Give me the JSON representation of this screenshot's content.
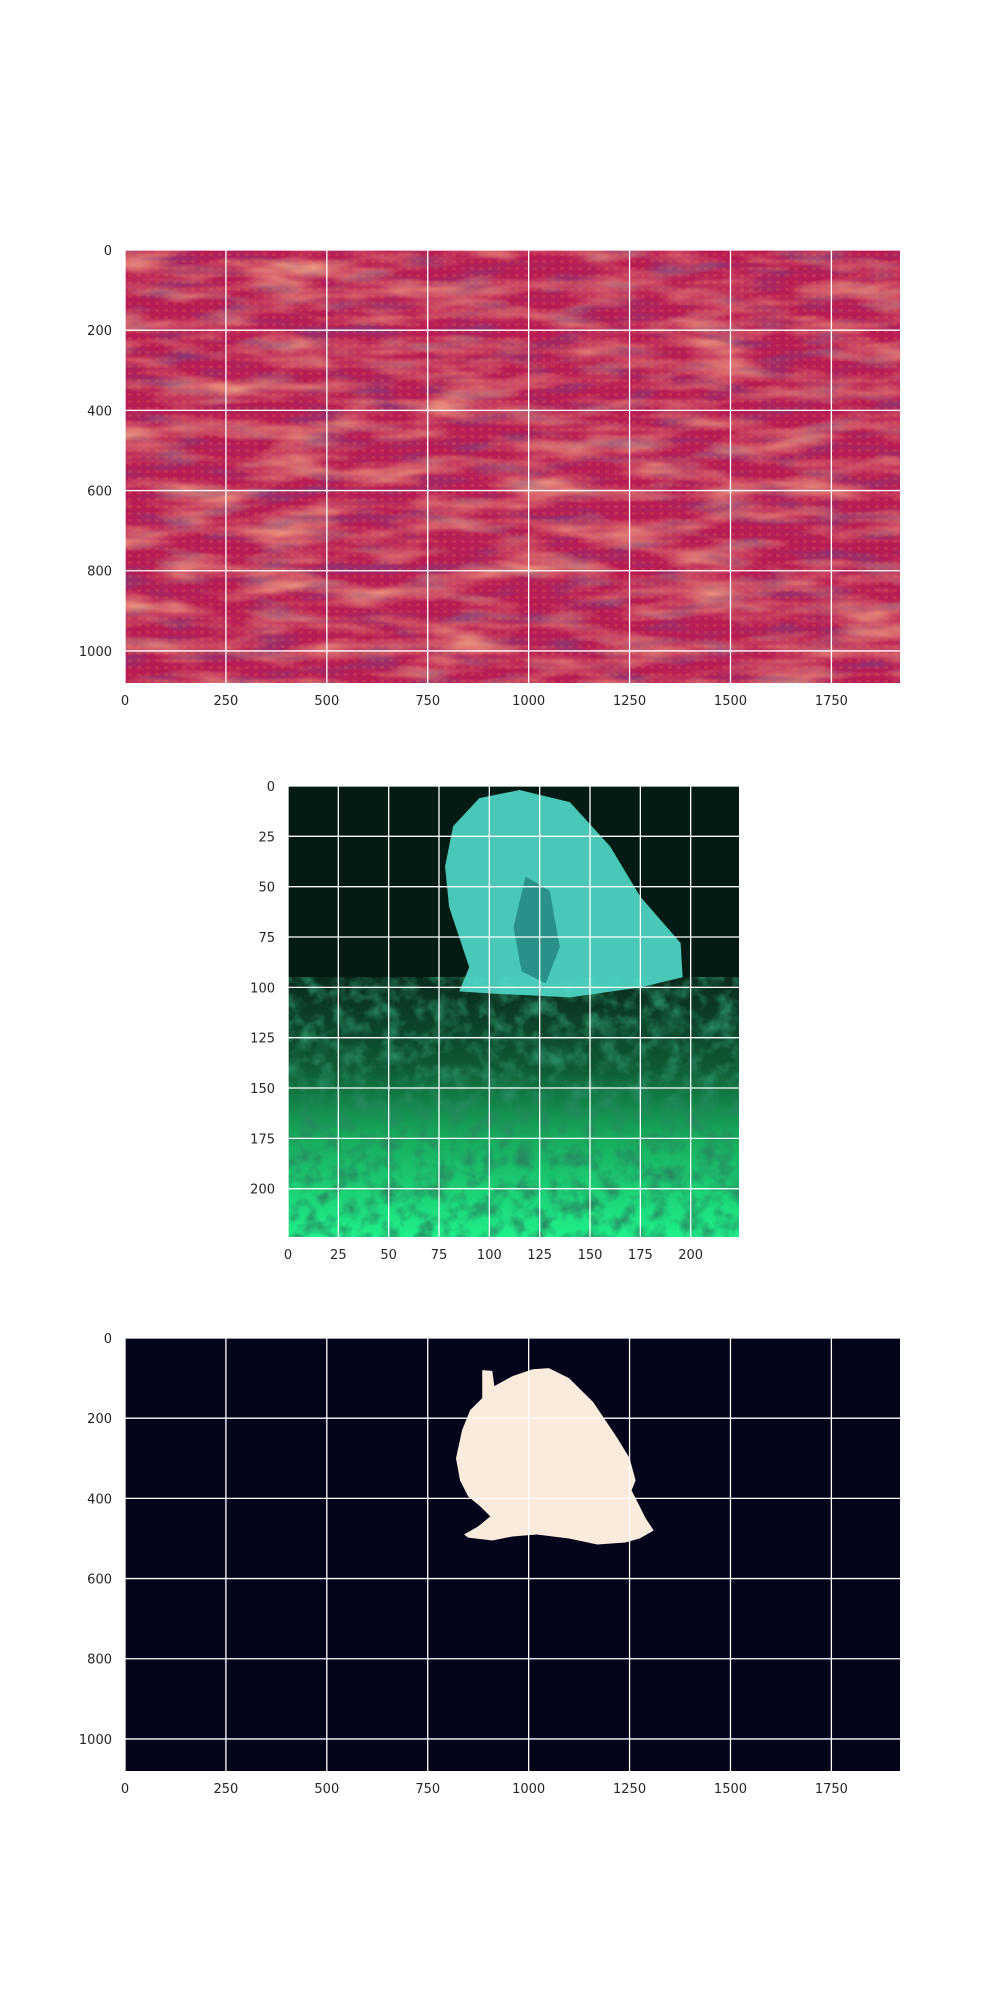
{
  "chart_data": [
    {
      "type": "heatmap",
      "title": "",
      "xlabel": "",
      "ylabel": "",
      "xlim": [
        0,
        1920
      ],
      "ylim": [
        1080,
        0
      ],
      "xticks": [
        0,
        250,
        500,
        750,
        1000,
        1250,
        1500,
        1750
      ],
      "yticks": [
        0,
        200,
        400,
        600,
        800,
        1000
      ],
      "grid": true,
      "colormap": "rocket",
      "base_color": "#b81c54",
      "description_colors": {
        "dark": "#3a0c3c",
        "bright": "#f47a44"
      }
    },
    {
      "type": "heatmap",
      "title": "",
      "xlabel": "",
      "ylabel": "",
      "xlim": [
        0,
        224
      ],
      "ylim": [
        224,
        0
      ],
      "xticks": [
        0,
        25,
        50,
        75,
        100,
        125,
        150,
        175,
        200
      ],
      "yticks": [
        0,
        25,
        50,
        75,
        100,
        125,
        150,
        175,
        200
      ],
      "grid": true,
      "colors": {
        "water": "#041a14",
        "fish": "#4fd6c6",
        "seabed": "#19c46a",
        "seabed_bright": "#1ff08a"
      }
    },
    {
      "type": "heatmap",
      "title": "",
      "xlabel": "",
      "ylabel": "",
      "xlim": [
        0,
        1920
      ],
      "ylim": [
        1080,
        0
      ],
      "xticks": [
        0,
        250,
        500,
        750,
        1000,
        1250,
        1500,
        1750
      ],
      "yticks": [
        0,
        200,
        400,
        600,
        800,
        1000
      ],
      "grid": true,
      "colors": {
        "background": "#03051a",
        "mask": "#faebdd"
      },
      "mask_polygon": [
        [
          885,
          80
        ],
        [
          910,
          82
        ],
        [
          915,
          120
        ],
        [
          960,
          95
        ],
        [
          1010,
          78
        ],
        [
          1050,
          75
        ],
        [
          1100,
          100
        ],
        [
          1160,
          160
        ],
        [
          1220,
          250
        ],
        [
          1250,
          300
        ],
        [
          1265,
          355
        ],
        [
          1255,
          380
        ],
        [
          1290,
          450
        ],
        [
          1310,
          480
        ],
        [
          1275,
          500
        ],
        [
          1240,
          510
        ],
        [
          1170,
          515
        ],
        [
          1100,
          500
        ],
        [
          1020,
          490
        ],
        [
          960,
          495
        ],
        [
          910,
          505
        ],
        [
          850,
          498
        ],
        [
          840,
          490
        ],
        [
          875,
          470
        ],
        [
          905,
          445
        ],
        [
          880,
          420
        ],
        [
          850,
          395
        ],
        [
          830,
          355
        ],
        [
          820,
          300
        ],
        [
          835,
          230
        ],
        [
          855,
          180
        ],
        [
          885,
          150
        ]
      ]
    }
  ]
}
